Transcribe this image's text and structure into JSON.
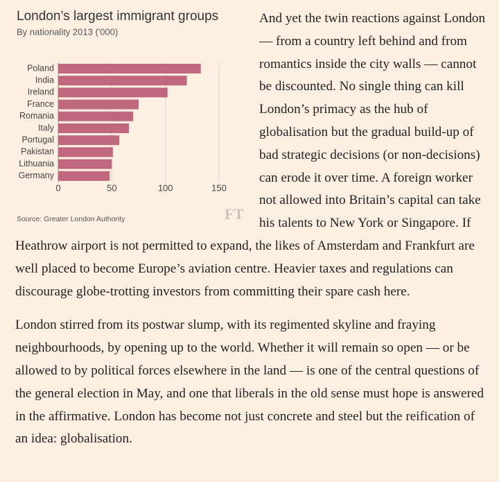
{
  "chart_data": {
    "type": "barh",
    "title": "London’s largest immigrant groups",
    "subtitle": "By nationality 2013 ('000)",
    "categories": [
      "Poland",
      "India",
      "Ireland",
      "France",
      "Romania",
      "Italy",
      "Portugal",
      "Pakistan",
      "Lithuania",
      "Germany"
    ],
    "values": [
      133,
      120,
      102,
      75,
      70,
      66,
      57,
      51,
      50,
      48
    ],
    "color": "#c0667f",
    "xlim": [
      0,
      150
    ],
    "xticks": [
      0,
      50,
      100,
      150
    ],
    "grid": true,
    "source": "Source: Greater London Authority",
    "logo": "FT"
  },
  "article": {
    "paragraphs": [
      "And yet the twin reactions against London — from a country left behind and from romantics inside the city walls — cannot be discounted. No single thing can kill London’s primacy as the hub of globalisation but the gradual build-up of bad strategic decisions (or non-decisions) can erode it over time. A foreign worker not allowed into Britain’s capital can take his talents to New York or Singapore. If Heathrow airport is not permitted to expand, the likes of Amsterdam and Frankfurt are well placed to become Europe’s aviation centre. Heavier taxes and regulations can discourage globe-trotting investors from committing their spare cash here.",
      "London stirred from its postwar slump, with its regimented skyline and fraying neighbourhoods, by opening up to the world. Whether it will remain so open — or be allowed to by political forces elsewhere in the land — is one of the central questions of the general election in May, and one that liberals in the old sense must hope is answered in the affirmative. London has become not just concrete and steel but the reification of an idea: globalisation."
    ]
  }
}
